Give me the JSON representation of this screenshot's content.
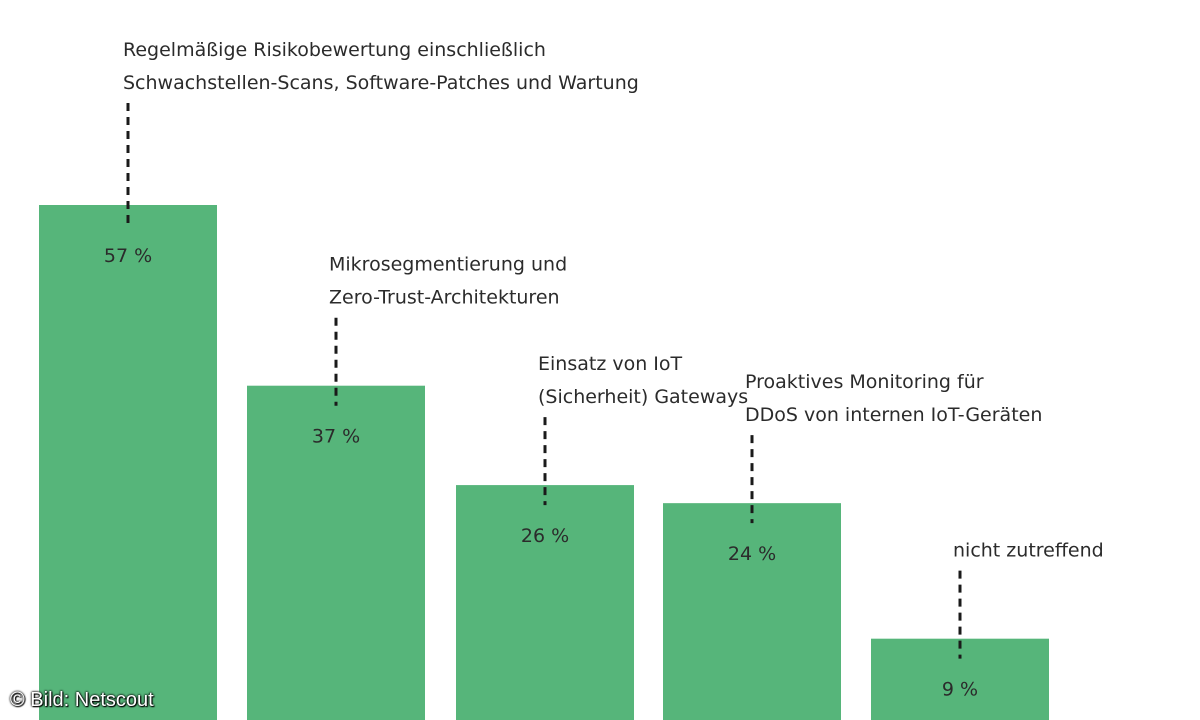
{
  "chart_data": {
    "type": "bar",
    "categories": [
      [
        "Regelmäßige Risikobewertung einschließlich",
        "Schwachstellen-Scans, Software-Patches und Wartung"
      ],
      [
        "Mikrosegmentierung und",
        "Zero-Trust-Architekturen"
      ],
      [
        "Einsatz von IoT",
        "(Sicherheit) Gateways"
      ],
      [
        "Proaktives Monitoring für",
        "DDoS von internen IoT-Geräten"
      ],
      [
        "nicht zutreffend"
      ]
    ],
    "values": [
      57,
      37,
      26,
      24,
      9
    ],
    "value_labels": [
      "57 %",
      "37 %",
      "26 %",
      "24 %",
      "9 %"
    ],
    "bar_color": "#56b57a",
    "leader_line_style": "dashed",
    "ylim": [
      0,
      57
    ],
    "grid": false,
    "legend": "none"
  },
  "credit": "© Bild: Netscout"
}
